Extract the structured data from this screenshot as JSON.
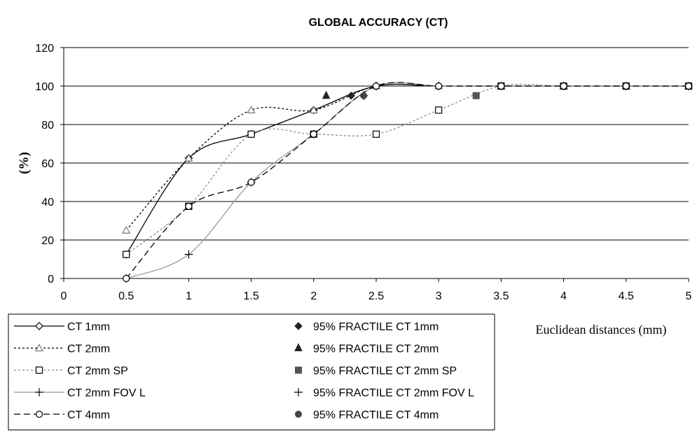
{
  "chart_data": {
    "type": "line",
    "title": "GLOBAL ACCURACY (CT)",
    "xlabel": "Euclidean distances (mm)",
    "ylabel": "(%)",
    "xlim": [
      0,
      5
    ],
    "ylim": [
      0,
      120
    ],
    "x_ticks": [
      "0",
      "0.5",
      "1",
      "1.5",
      "2",
      "2.5",
      "3",
      "3.5",
      "4",
      "4.5",
      "5"
    ],
    "y_ticks": [
      "0",
      "20",
      "40",
      "60",
      "80",
      "100",
      "120"
    ],
    "grid": "horizontal",
    "x": [
      0.5,
      1,
      1.5,
      2,
      2.5,
      3,
      3.5,
      4,
      4.5,
      5
    ],
    "series": [
      {
        "name": "CT 1mm",
        "values": [
          12.5,
          62.5,
          75,
          87.5,
          100,
          100,
          100,
          100,
          100,
          100
        ],
        "line": "solid",
        "marker": "diamond",
        "color": "#000000"
      },
      {
        "name": "CT 2mm",
        "values": [
          25,
          62.5,
          87.5,
          87.5,
          100,
          100,
          100,
          100,
          100,
          100
        ],
        "line": "dotted",
        "marker": "triangle",
        "color": "#000000"
      },
      {
        "name": "CT 2mm SP",
        "values": [
          12.5,
          37.5,
          75,
          75,
          75,
          87.5,
          100,
          100,
          100,
          100
        ],
        "line": "dotted",
        "marker": "square",
        "color": "#888888"
      },
      {
        "name": "CT 2mm FOV L",
        "values": [
          0,
          12.5,
          50,
          75,
          100,
          100,
          100,
          100,
          100,
          100
        ],
        "line": "solid",
        "marker": "plus",
        "color": "#999999"
      },
      {
        "name": "CT 4mm",
        "values": [
          0,
          37.5,
          50,
          75,
          100,
          100,
          100,
          100,
          100,
          100
        ],
        "line": "dashed",
        "marker": "circle",
        "color": "#000000"
      }
    ],
    "fractiles": [
      {
        "name": "95% FRACTILE CT 1mm",
        "x": 2.3,
        "y": 95,
        "marker": "diamond-filled",
        "color": "#222222"
      },
      {
        "name": "95% FRACTILE CT 2mm",
        "x": 2.1,
        "y": 95,
        "marker": "triangle-filled",
        "color": "#222222"
      },
      {
        "name": "95% FRACTILE CT 2mm SP",
        "x": 3.3,
        "y": 95,
        "marker": "square-filled",
        "color": "#555555"
      },
      {
        "name": "95% FRACTILE CT 2mm FOV L",
        "x": 2.4,
        "y": 95,
        "marker": "plus",
        "color": "#222222"
      },
      {
        "name": "95% FRACTILE CT 4mm",
        "x": 2.4,
        "y": 95,
        "marker": "circle-filled",
        "color": "#444444"
      }
    ],
    "legend_position": "bottom"
  }
}
